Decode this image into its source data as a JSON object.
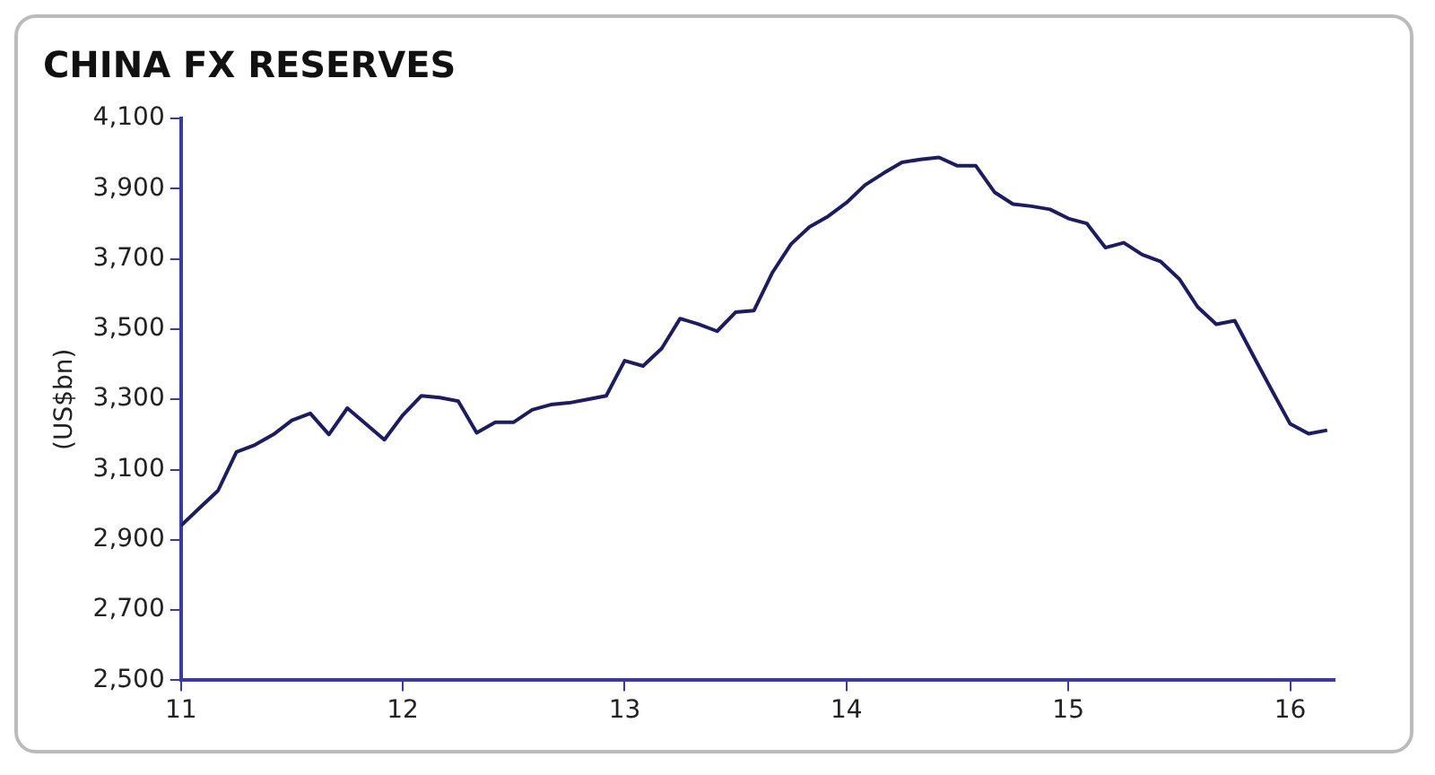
{
  "chart_data": {
    "type": "line",
    "title": "CHINA FX RESERVES",
    "ylabel": "(US$bn)",
    "x": [
      11,
      11.083,
      11.167,
      11.25,
      11.333,
      11.417,
      11.5,
      11.583,
      11.667,
      11.75,
      11.833,
      11.917,
      12,
      12.083,
      12.167,
      12.25,
      12.333,
      12.417,
      12.5,
      12.583,
      12.667,
      12.75,
      12.833,
      12.917,
      13,
      13.083,
      13.167,
      13.25,
      13.333,
      13.417,
      13.5,
      13.583,
      13.667,
      13.75,
      13.833,
      13.917,
      14,
      14.083,
      14.167,
      14.25,
      14.333,
      14.417,
      14.5,
      14.583,
      14.667,
      14.75,
      14.833,
      14.917,
      15,
      15.083,
      15.167,
      15.25,
      15.333,
      15.417,
      15.5,
      15.583,
      15.667,
      15.75,
      15.833,
      15.917,
      16,
      16.083,
      16.167
    ],
    "series": [
      {
        "color": "#1c1c5e",
        "values": [
          2940,
          2990,
          3040,
          3150,
          3170,
          3200,
          3240,
          3260,
          3200,
          3275,
          3230,
          3185,
          3255,
          3310,
          3305,
          3295,
          3205,
          3235,
          3235,
          3270,
          3285,
          3290,
          3300,
          3310,
          3410,
          3395,
          3445,
          3530,
          3514,
          3494,
          3548,
          3553,
          3662,
          3742,
          3791,
          3821,
          3860,
          3910,
          3944,
          3975,
          3983,
          3989,
          3965,
          3965,
          3890,
          3856,
          3850,
          3841,
          3815,
          3801,
          3732,
          3746,
          3712,
          3692,
          3643,
          3563,
          3514,
          3524,
          3425,
          3326,
          3230,
          3202,
          3212
        ]
      }
    ],
    "xlim": [
      11,
      16.2
    ],
    "xticks": [
      11,
      12,
      13,
      14,
      15,
      16
    ],
    "ylim": [
      2500,
      4100
    ],
    "yticks": [
      {
        "value": 2500,
        "label": "2,500"
      },
      {
        "value": 2700,
        "label": "2,700"
      },
      {
        "value": 2900,
        "label": "2,900"
      },
      {
        "value": 3100,
        "label": "3,100"
      },
      {
        "value": 3300,
        "label": "3,300"
      },
      {
        "value": 3500,
        "label": "3,500"
      },
      {
        "value": 3700,
        "label": "3,700"
      },
      {
        "value": 3900,
        "label": "3,900"
      },
      {
        "value": 4100,
        "label": "4,100"
      }
    ],
    "grid": false,
    "legend": false,
    "marker": "none",
    "line_style": "solid"
  }
}
